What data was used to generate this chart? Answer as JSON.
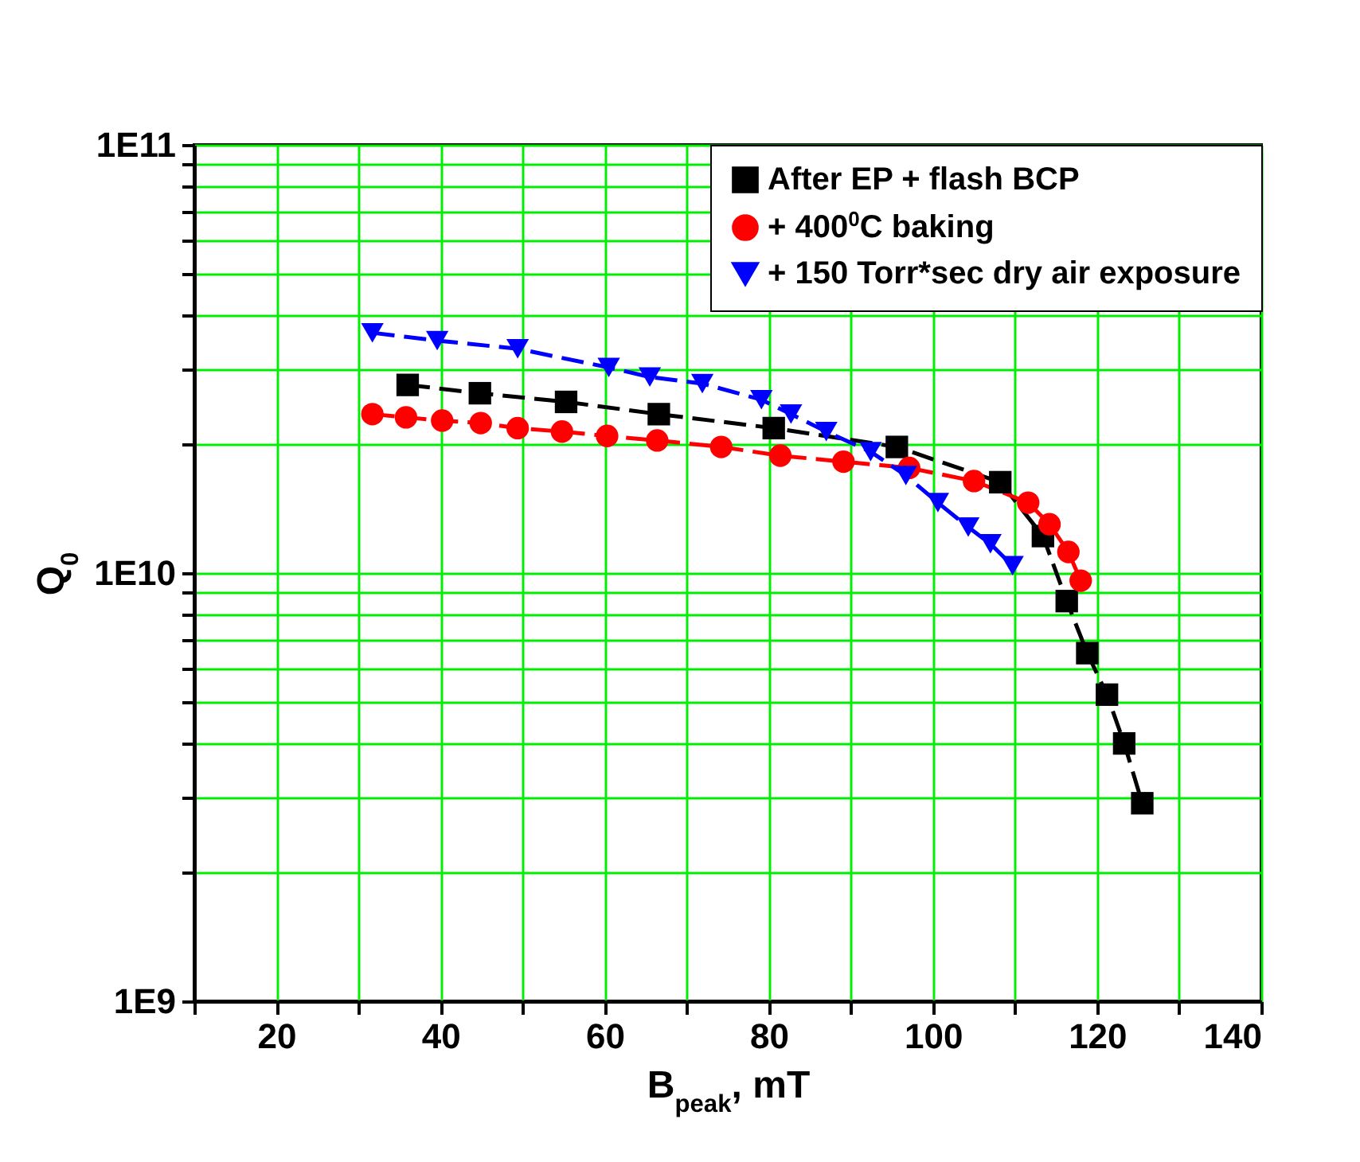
{
  "chart_data": {
    "type": "line",
    "xlabel": "B$_{peak}$, mT",
    "ylabel": "Q$_{0}$",
    "xlim": [
      10,
      140
    ],
    "xticks": [
      {
        "value": 10,
        "label": null
      },
      20,
      {
        "value": 30,
        "label": null
      },
      40,
      {
        "value": 50,
        "label": null
      },
      60,
      {
        "value": 70,
        "label": null
      },
      80,
      {
        "value": 90,
        "label": null
      },
      100,
      {
        "value": 110,
        "label": null
      },
      120,
      {
        "value": 130,
        "label": null
      },
      140
    ],
    "ylim": [
      1000000000,
      100000000000
    ],
    "yticks": [
      {
        "value": 1000000000,
        "label": "1E9"
      },
      {
        "value": 2000000000,
        "label": null
      },
      {
        "value": 3000000000,
        "label": null
      },
      {
        "value": 4000000000,
        "label": null
      },
      {
        "value": 5000000000,
        "label": null
      },
      {
        "value": 6000000000,
        "label": null
      },
      {
        "value": 7000000000,
        "label": null
      },
      {
        "value": 8000000000,
        "label": null
      },
      {
        "value": 9000000000,
        "label": null
      },
      {
        "value": 10000000000,
        "label": "1E10"
      },
      {
        "value": 20000000000,
        "label": null
      },
      {
        "value": 30000000000,
        "label": null
      },
      {
        "value": 40000000000,
        "label": null
      },
      {
        "value": 50000000000,
        "label": null
      },
      {
        "value": 60000000000,
        "label": null
      },
      {
        "value": 70000000000,
        "label": null
      },
      {
        "value": 80000000000,
        "label": null
      },
      {
        "value": 90000000000,
        "label": null
      },
      {
        "value": 100000000000,
        "label": "1E11"
      }
    ],
    "log": "y",
    "grid": true,
    "legend": "top right",
    "line_style": "dashed",
    "series": [
      {
        "name": "After EP + flash BCP",
        "color": "#000000",
        "marker": "square",
        "x": [
          36,
          44.8,
          55.3,
          66.6,
          80.6,
          95.6,
          108.2,
          113.4,
          116.3,
          118.8,
          121.2,
          123.3,
          125.5
        ],
        "values": [
          27500000000,
          26300000000,
          25100000000,
          23500000000,
          21800000000,
          19700000000,
          16300000000,
          12200000000,
          8600000000,
          6500000000,
          5200000000,
          4000000000,
          2900000000
        ]
      },
      {
        "name": "+ 400$^{0}$C baking",
        "color": "#ff0000",
        "marker": "circle",
        "x": [
          31.7,
          35.8,
          40.2,
          44.9,
          49.4,
          54.8,
          60.3,
          66.4,
          74.2,
          81.4,
          89.1,
          97.1,
          105.0,
          111.6,
          114.2,
          116.5,
          118.0
        ],
        "values": [
          23500000000,
          23100000000,
          22700000000,
          22400000000,
          21800000000,
          21400000000,
          20900000000,
          20400000000,
          19700000000,
          18800000000,
          18200000000,
          17600000000,
          16400000000,
          14600000000,
          13000000000,
          11200000000,
          9600000000
        ]
      },
      {
        "name": "+ 150 Torr*sec dry air exposure",
        "color": "#0000ff",
        "marker": "triangle",
        "x": [
          31.7,
          39.6,
          49.4,
          60.5,
          65.5,
          71.9,
          79.1,
          82.7,
          87.0,
          92.4,
          96.7,
          100.6,
          104.3,
          107.0,
          109.7
        ],
        "values": [
          36400000000,
          34900000000,
          33400000000,
          30200000000,
          28700000000,
          27700000000,
          25400000000,
          23500000000,
          21400000000,
          19200000000,
          16900000000,
          14600000000,
          12800000000,
          11700000000,
          10400000000
        ]
      }
    ]
  }
}
